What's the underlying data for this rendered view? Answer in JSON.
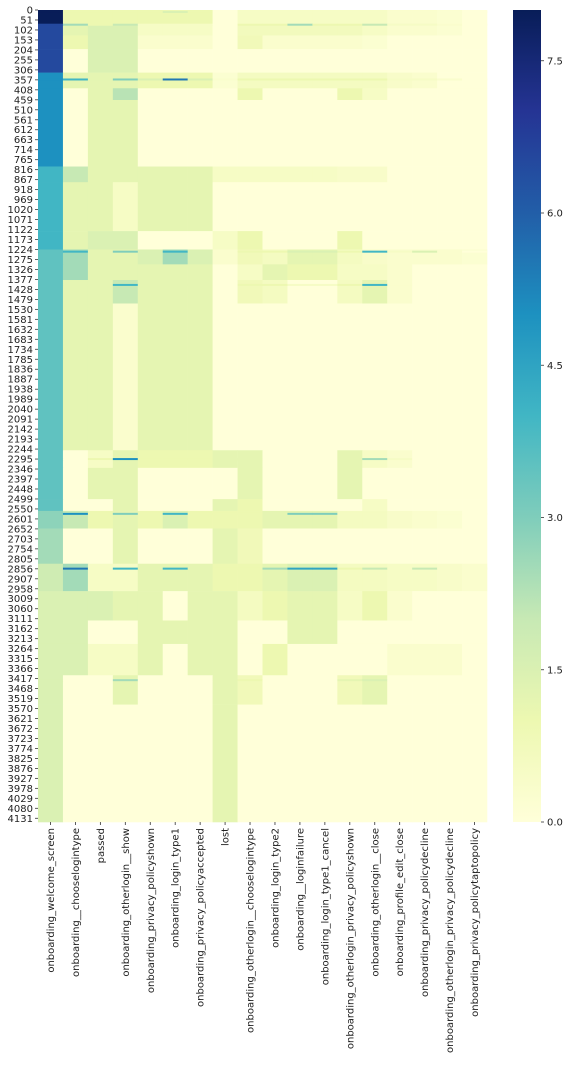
{
  "chart_data": {
    "type": "heatmap",
    "title": "",
    "xlabel": "",
    "ylabel": "",
    "columns": [
      "onboarding_welcome_screen",
      "onboarding__chooselogintype",
      "passed",
      "onboarding_otherlogin__show",
      "onboarding_privacy_policyshown",
      "onboarding_login_type1",
      "onboarding_privacy_policyaccepted",
      "lost",
      "onboarding_otherlogin__chooselogintype",
      "onboarding_login_type2",
      "onboarding__loginfailure",
      "onboarding_login_type1_cancel",
      "onboarding_otherlogin_privacy_policyshown",
      "onboarding_otherlogin__close",
      "onboarding_profile_edit_close",
      "onboarding_privacy_policydecline",
      "onboarding_otherlogin_privacy_policydecline",
      "onboarding_privacy_policytaptopolicy"
    ],
    "row_tick_labels": [
      "0",
      "51",
      "102",
      "153",
      "204",
      "255",
      "306",
      "357",
      "408",
      "459",
      "510",
      "561",
      "612",
      "663",
      "714",
      "765",
      "816",
      "867",
      "918",
      "969",
      "1020",
      "1071",
      "1122",
      "1173",
      "1224",
      "1275",
      "1326",
      "1377",
      "1428",
      "1479",
      "1530",
      "1581",
      "1632",
      "1683",
      "1734",
      "1785",
      "1836",
      "1887",
      "1938",
      "1989",
      "2040",
      "2091",
      "2142",
      "2193",
      "2244",
      "2295",
      "2346",
      "2397",
      "2448",
      "2499",
      "2550",
      "2601",
      "2652",
      "2703",
      "2754",
      "2805",
      "2856",
      "2907",
      "2958",
      "3009",
      "3060",
      "3111",
      "3162",
      "3213",
      "3264",
      "3315",
      "3366",
      "3417",
      "3468",
      "3519",
      "3570",
      "3621",
      "3672",
      "3723",
      "3774",
      "3825",
      "3876",
      "3927",
      "3978",
      "4029",
      "4080",
      "4131"
    ],
    "row_count": 4150,
    "value_range": [
      0,
      8
    ],
    "colorbar_ticks": [
      "0.0",
      "1.5",
      "3.0",
      "4.5",
      "6.0",
      "7.5"
    ],
    "colormap": "YlGnBu",
    "colormap_stops": [
      "#ffffd9",
      "#edf8b1",
      "#c7e9b4",
      "#7fcdbb",
      "#41b6c4",
      "#1d91c0",
      "#225ea8",
      "#253494",
      "#081d58"
    ],
    "blocks": [
      {
        "rows": [
          0,
          75
        ],
        "values": [
          8,
          1,
          1,
          1,
          1,
          1,
          1,
          0,
          0.5,
          0.5,
          0.5,
          0.5,
          0.5,
          0.5,
          0.3,
          0.3,
          0.2,
          0
        ]
      },
      {
        "rows": [
          75,
          130
        ],
        "values": [
          6.5,
          1.2,
          1.5,
          1.5,
          0.5,
          0.5,
          0.5,
          0,
          0.7,
          0.7,
          0.7,
          0.7,
          0.7,
          0.5,
          0.3,
          0.3,
          0.2,
          0
        ]
      },
      {
        "rows": [
          130,
          200
        ],
        "values": [
          6.5,
          1,
          1.5,
          1.5,
          0.3,
          0.3,
          0.3,
          0,
          0.8,
          0.3,
          0.3,
          0.3,
          0.3,
          0.2,
          0,
          0,
          0,
          0
        ]
      },
      {
        "rows": [
          200,
          320
        ],
        "values": [
          6.5,
          0,
          1.5,
          1.5,
          0,
          0,
          0,
          0,
          0,
          0,
          0,
          0,
          0,
          0,
          0,
          0,
          0,
          0
        ]
      },
      {
        "rows": [
          320,
          400
        ],
        "values": [
          5,
          1.2,
          1.2,
          1.2,
          1,
          1,
          1,
          0.2,
          0.6,
          0.6,
          0.6,
          0.6,
          0.6,
          0.6,
          0.4,
          0.3,
          0,
          0
        ]
      },
      {
        "rows": [
          400,
          460
        ],
        "values": [
          5,
          0,
          1.2,
          2.2,
          0,
          0,
          0,
          0,
          1,
          0,
          0,
          0,
          1,
          0.5,
          0,
          0,
          0,
          0
        ]
      },
      {
        "rows": [
          460,
          800
        ],
        "values": [
          5,
          0,
          1.2,
          1.2,
          0,
          0,
          0,
          0,
          0,
          0,
          0,
          0,
          0,
          0,
          0,
          0,
          0,
          0
        ]
      },
      {
        "rows": [
          800,
          880
        ],
        "values": [
          4,
          2,
          1.2,
          1.2,
          1.2,
          1.2,
          1.2,
          0.5,
          0.5,
          0.5,
          0.5,
          0.5,
          0.4,
          0.4,
          0,
          0,
          0,
          0
        ]
      },
      {
        "rows": [
          880,
          1130
        ],
        "values": [
          4,
          1.2,
          1.2,
          0.5,
          1.2,
          1.2,
          1.2,
          0,
          0,
          0,
          0,
          0,
          0,
          0,
          0,
          0,
          0,
          0
        ]
      },
      {
        "rows": [
          1130,
          1224
        ],
        "values": [
          4,
          1.2,
          1.5,
          1.5,
          0,
          0,
          0,
          0.5,
          1,
          0,
          0,
          0,
          1,
          0,
          0,
          0,
          0,
          0
        ]
      },
      {
        "rows": [
          1224,
          1300
        ],
        "values": [
          3.5,
          2.5,
          1.2,
          1.2,
          1.5,
          2.5,
          1.5,
          0.3,
          0.8,
          0.6,
          1.2,
          1.2,
          0.6,
          0.4,
          0.3,
          0.3,
          0.3,
          0.2
        ]
      },
      {
        "rows": [
          1300,
          1380
        ],
        "values": [
          3.5,
          2.5,
          1.2,
          1.2,
          1.2,
          1.2,
          1.2,
          0,
          0.5,
          1.2,
          1,
          1,
          0.5,
          0.5,
          0.3,
          0,
          0,
          0
        ]
      },
      {
        "rows": [
          1380,
          1500
        ],
        "values": [
          3.5,
          1.2,
          1.2,
          2,
          1.2,
          1.2,
          1.2,
          0,
          0.8,
          0.6,
          0,
          0,
          0.6,
          1.2,
          0.3,
          0,
          0,
          0
        ]
      },
      {
        "rows": [
          1500,
          2250
        ],
        "values": [
          3.5,
          1.2,
          1.2,
          0.3,
          1.2,
          1.2,
          1.2,
          0,
          0,
          0,
          0,
          0,
          0,
          0,
          0,
          0,
          0,
          0
        ]
      },
      {
        "rows": [
          2250,
          2340
        ],
        "values": [
          3.5,
          0,
          0.5,
          1.2,
          1,
          1,
          1,
          1.2,
          1.2,
          0,
          0,
          0,
          1.2,
          0.5,
          0.3,
          0,
          0,
          0
        ]
      },
      {
        "rows": [
          2340,
          2500
        ],
        "values": [
          3.5,
          0,
          1.2,
          1.2,
          0,
          0,
          0,
          0,
          1.2,
          0,
          0,
          0,
          1.2,
          0,
          0,
          0,
          0,
          0
        ]
      },
      {
        "rows": [
          2500,
          2560
        ],
        "values": [
          3.5,
          0,
          0,
          1.2,
          0,
          0,
          0,
          1.2,
          1,
          0,
          0,
          0,
          0,
          0.5,
          0,
          0,
          0,
          0
        ]
      },
      {
        "rows": [
          2560,
          2650
        ],
        "values": [
          2.8,
          2,
          1,
          1.2,
          1,
          1.5,
          1,
          1,
          1,
          1.2,
          1.2,
          1.2,
          0.6,
          0.6,
          0.4,
          0.3,
          0.2,
          0
        ]
      },
      {
        "rows": [
          2650,
          2830
        ],
        "values": [
          2.5,
          0,
          0,
          1.2,
          0,
          0,
          0,
          1.2,
          0.8,
          0,
          0,
          0,
          0,
          0,
          0,
          0,
          0,
          0
        ]
      },
      {
        "rows": [
          2830,
          2970
        ],
        "values": [
          1.8,
          2.5,
          0.5,
          0.5,
          1.2,
          1.2,
          1.2,
          1,
          1,
          1.2,
          1.5,
          1.5,
          0.6,
          0.6,
          0.5,
          0.5,
          0.4,
          0.3
        ]
      },
      {
        "rows": [
          2970,
          3120
        ],
        "values": [
          1.5,
          1.5,
          1.5,
          1.2,
          1.2,
          0,
          1.2,
          1.2,
          0.6,
          1,
          1.2,
          1.2,
          0.5,
          1,
          0.3,
          0,
          0,
          0
        ]
      },
      {
        "rows": [
          3120,
          3240
        ],
        "values": [
          1.5,
          1.5,
          0,
          0,
          1.2,
          1.2,
          1.2,
          1.2,
          0,
          0,
          1.2,
          1.2,
          0,
          0,
          0,
          0,
          0,
          0
        ]
      },
      {
        "rows": [
          3240,
          3400
        ],
        "values": [
          1.5,
          1.5,
          0.5,
          0.5,
          1.2,
          0,
          1.2,
          1.2,
          0,
          1,
          0,
          0,
          0,
          0,
          0.3,
          0.3,
          0.3,
          0
        ]
      },
      {
        "rows": [
          3400,
          3550
        ],
        "values": [
          1.5,
          0,
          0,
          1.2,
          0,
          0,
          0,
          1.2,
          0.8,
          0,
          0,
          0,
          0.8,
          1.2,
          0,
          0,
          0,
          0
        ]
      },
      {
        "rows": [
          3550,
          4150
        ],
        "values": [
          1.5,
          0,
          0,
          0,
          0,
          0,
          0,
          1.2,
          0,
          0,
          0,
          0,
          0,
          0,
          0,
          0,
          0,
          0
        ]
      }
    ],
    "highlight_rows": [
      {
        "row": 5,
        "values": [
          8,
          1,
          1,
          1,
          1,
          1.5,
          1,
          0,
          0.5,
          0.5,
          0.5,
          0.5,
          0.5,
          0.5,
          0.3,
          0.3,
          0.2,
          0
        ]
      },
      {
        "row": 70,
        "values": [
          6.5,
          2.5,
          1,
          2,
          0.5,
          0.5,
          0.5,
          0,
          1,
          1,
          2.5,
          1,
          1,
          2,
          0.5,
          0.5,
          0.3,
          0
        ]
      },
      {
        "row": 350,
        "values": [
          5,
          4,
          1.2,
          3,
          1.5,
          5.5,
          1.5,
          0.3,
          1,
          1,
          1,
          1,
          1,
          1,
          0.5,
          0.5,
          0.3,
          0
        ]
      },
      {
        "row": 1230,
        "values": [
          3.5,
          4,
          1.2,
          3,
          1.5,
          4,
          1.5,
          0.3,
          1,
          1,
          1.5,
          1.5,
          1,
          4,
          0.5,
          1.5,
          0.3,
          0
        ]
      },
      {
        "row": 1400,
        "values": [
          3.5,
          1.2,
          1.2,
          4,
          1.2,
          1.2,
          1.2,
          0,
          1,
          1,
          0.5,
          0.5,
          1,
          4,
          0.3,
          0,
          0,
          0
        ]
      },
      {
        "row": 2290,
        "values": [
          3.5,
          0,
          1,
          5,
          1,
          1,
          1,
          1.2,
          1.2,
          0,
          0,
          0,
          1.2,
          2.5,
          0.5,
          0,
          0,
          0
        ]
      },
      {
        "row": 2570,
        "values": [
          2.8,
          5,
          1,
          3,
          1,
          4,
          1,
          1,
          1,
          1.2,
          3,
          3,
          0.6,
          0.6,
          0.4,
          0.3,
          0.2,
          0
        ]
      },
      {
        "row": 2850,
        "values": [
          1.8,
          5.5,
          0.5,
          4,
          1.2,
          4,
          1.2,
          1,
          1,
          2.5,
          4.5,
          4.5,
          1,
          2,
          0.5,
          2,
          0.4,
          0.3
        ]
      },
      {
        "row": 3420,
        "values": [
          1.5,
          0,
          0,
          2.5,
          0,
          0,
          0,
          1.2,
          1,
          0,
          0,
          0,
          1.2,
          1.5,
          0,
          0,
          0,
          0
        ]
      }
    ]
  }
}
